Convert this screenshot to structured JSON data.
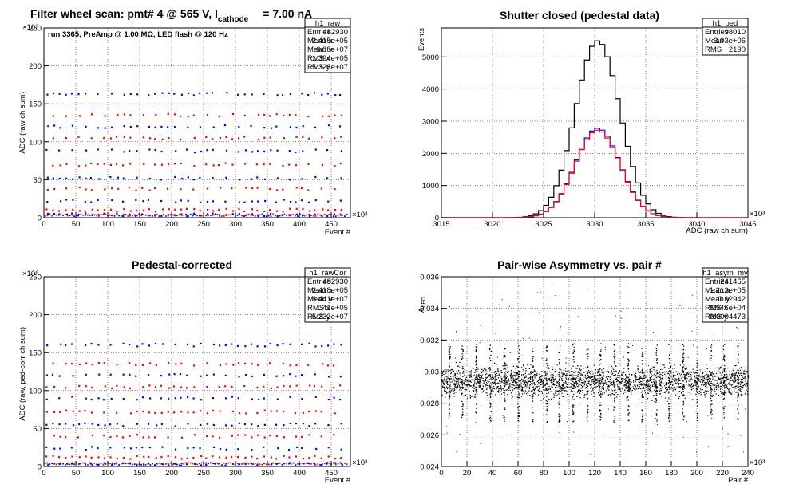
{
  "canvas_title": {
    "prefix": "Filter wheel scan: pmt#   4 @   565 V, I",
    "subscript": "cathode",
    "suffix": "= 7.00 nA"
  },
  "chart_data": [
    {
      "id": "h1_raw",
      "type": "scatter",
      "title": "",
      "annotation": "run 3365, PreAmp @ 1.00 MΩ, LED flash @  120 Hz",
      "xlabel": "Event #",
      "ylabel": "ADC (raw ch sum)",
      "xlim": [
        0,
        480
      ],
      "ylim": [
        0,
        250
      ],
      "x_exponent": "×10³",
      "y_exponent": "×10⁶",
      "x_ticks": [
        0,
        50,
        100,
        150,
        200,
        250,
        300,
        350,
        400,
        450
      ],
      "y_ticks": [
        0,
        50,
        100,
        150,
        200,
        250
      ],
      "grid": true,
      "stats": {
        "name": "h1_raw",
        "rows": [
          [
            "Entries",
            "482930"
          ],
          [
            "Mean x",
            "2.415e+05"
          ],
          [
            "Mean y",
            "6.08e+07"
          ],
          [
            "RMS x",
            "1.394e+05"
          ],
          [
            "RMS y",
            "5.328e+07"
          ]
        ]
      },
      "levels": [
        163,
        135,
        120,
        105,
        88,
        70,
        52,
        38,
        22,
        10,
        4
      ],
      "colors": {
        "a": "#0000ff",
        "b": "#ff0000"
      }
    },
    {
      "id": "h1_ped",
      "type": "line",
      "title": "Shutter closed (pedestal data)",
      "xlabel": "ADC (raw ch sum)",
      "ylabel": "Events",
      "xlim": [
        3015,
        3045
      ],
      "ylim": [
        0,
        5900
      ],
      "x_exponent": "×10³",
      "x_ticks": [
        3015,
        3020,
        3025,
        3030,
        3035,
        3040,
        3045
      ],
      "y_ticks": [
        0,
        1000,
        2000,
        3000,
        4000,
        5000
      ],
      "grid": true,
      "stats": {
        "name": "h1_ped",
        "rows": [
          [
            "Entries",
            "98010"
          ],
          [
            "Mean",
            "3.03e+06"
          ],
          [
            "RMS",
            "2190"
          ]
        ]
      },
      "series": [
        {
          "color": "#000000",
          "center": 3030.3,
          "sigma": 2.19,
          "peak": 5500
        },
        {
          "color": "#0000ff",
          "center": 3030.3,
          "sigma": 2.19,
          "peak": 2780
        },
        {
          "color": "#ff0000",
          "center": 3030.3,
          "sigma": 2.19,
          "peak": 2720
        }
      ]
    },
    {
      "id": "h1_rawCor",
      "type": "scatter",
      "title": "Pedestal-corrected",
      "xlabel": "Event #",
      "ylabel": "ADC (raw, ped-corr ch sum)",
      "xlim": [
        0,
        480
      ],
      "ylim": [
        0,
        250
      ],
      "x_exponent": "×10³",
      "y_exponent": "×10⁶",
      "x_ticks": [
        0,
        50,
        100,
        150,
        200,
        250,
        300,
        350,
        400,
        450
      ],
      "y_ticks": [
        0,
        50,
        100,
        150,
        200,
        250
      ],
      "grid": true,
      "stats": {
        "name": "h1_rawCor",
        "rows": [
          [
            "Entries",
            "482930"
          ],
          [
            "Mean x",
            "2.418e+05"
          ],
          [
            "Mean y",
            "6.441e+07"
          ],
          [
            "RMS x",
            "1.41e+05"
          ],
          [
            "RMS y",
            "5.232e+07"
          ]
        ]
      },
      "levels": [
        160,
        135,
        120,
        105,
        90,
        72,
        55,
        40,
        24,
        12,
        3
      ],
      "colors": {
        "a": "#0000ff",
        "b": "#ff0000"
      }
    },
    {
      "id": "h1_asym_my",
      "type": "scatter",
      "title": "Pair-wise Asymmetry vs. pair #",
      "xlabel": "Pair #",
      "ylabel": "A_LED",
      "ylabel_main": "A",
      "ylabel_sub": "LED",
      "xlim": [
        0,
        240
      ],
      "ylim": [
        0.024,
        0.036
      ],
      "x_exponent": "×10³",
      "x_ticks": [
        0,
        20,
        40,
        60,
        80,
        100,
        120,
        140,
        160,
        180,
        200,
        220,
        240
      ],
      "y_ticks": [
        0.024,
        0.026,
        0.028,
        0.03,
        0.032,
        0.034,
        0.036
      ],
      "grid": true,
      "stats": {
        "name": "h1_asym_my",
        "rows": [
          [
            "Entries",
            "241465"
          ],
          [
            "Mean x",
            "1.212e+05"
          ],
          [
            "Mean y",
            "0.02942"
          ],
          [
            "RMS x",
            "6.946e+04"
          ],
          [
            "RMS y",
            "0.0004473"
          ]
        ]
      },
      "band_center": 0.0294,
      "band_halfwidth": 0.00045,
      "spike_x": [
        6,
        16,
        27,
        38,
        49,
        60,
        71,
        82,
        92,
        103,
        114,
        124,
        135,
        146,
        157,
        168,
        178,
        189,
        200,
        211,
        221,
        232
      ],
      "spike_top": 0.0318,
      "spike_bottom": 0.0268,
      "color": "#000000"
    }
  ]
}
